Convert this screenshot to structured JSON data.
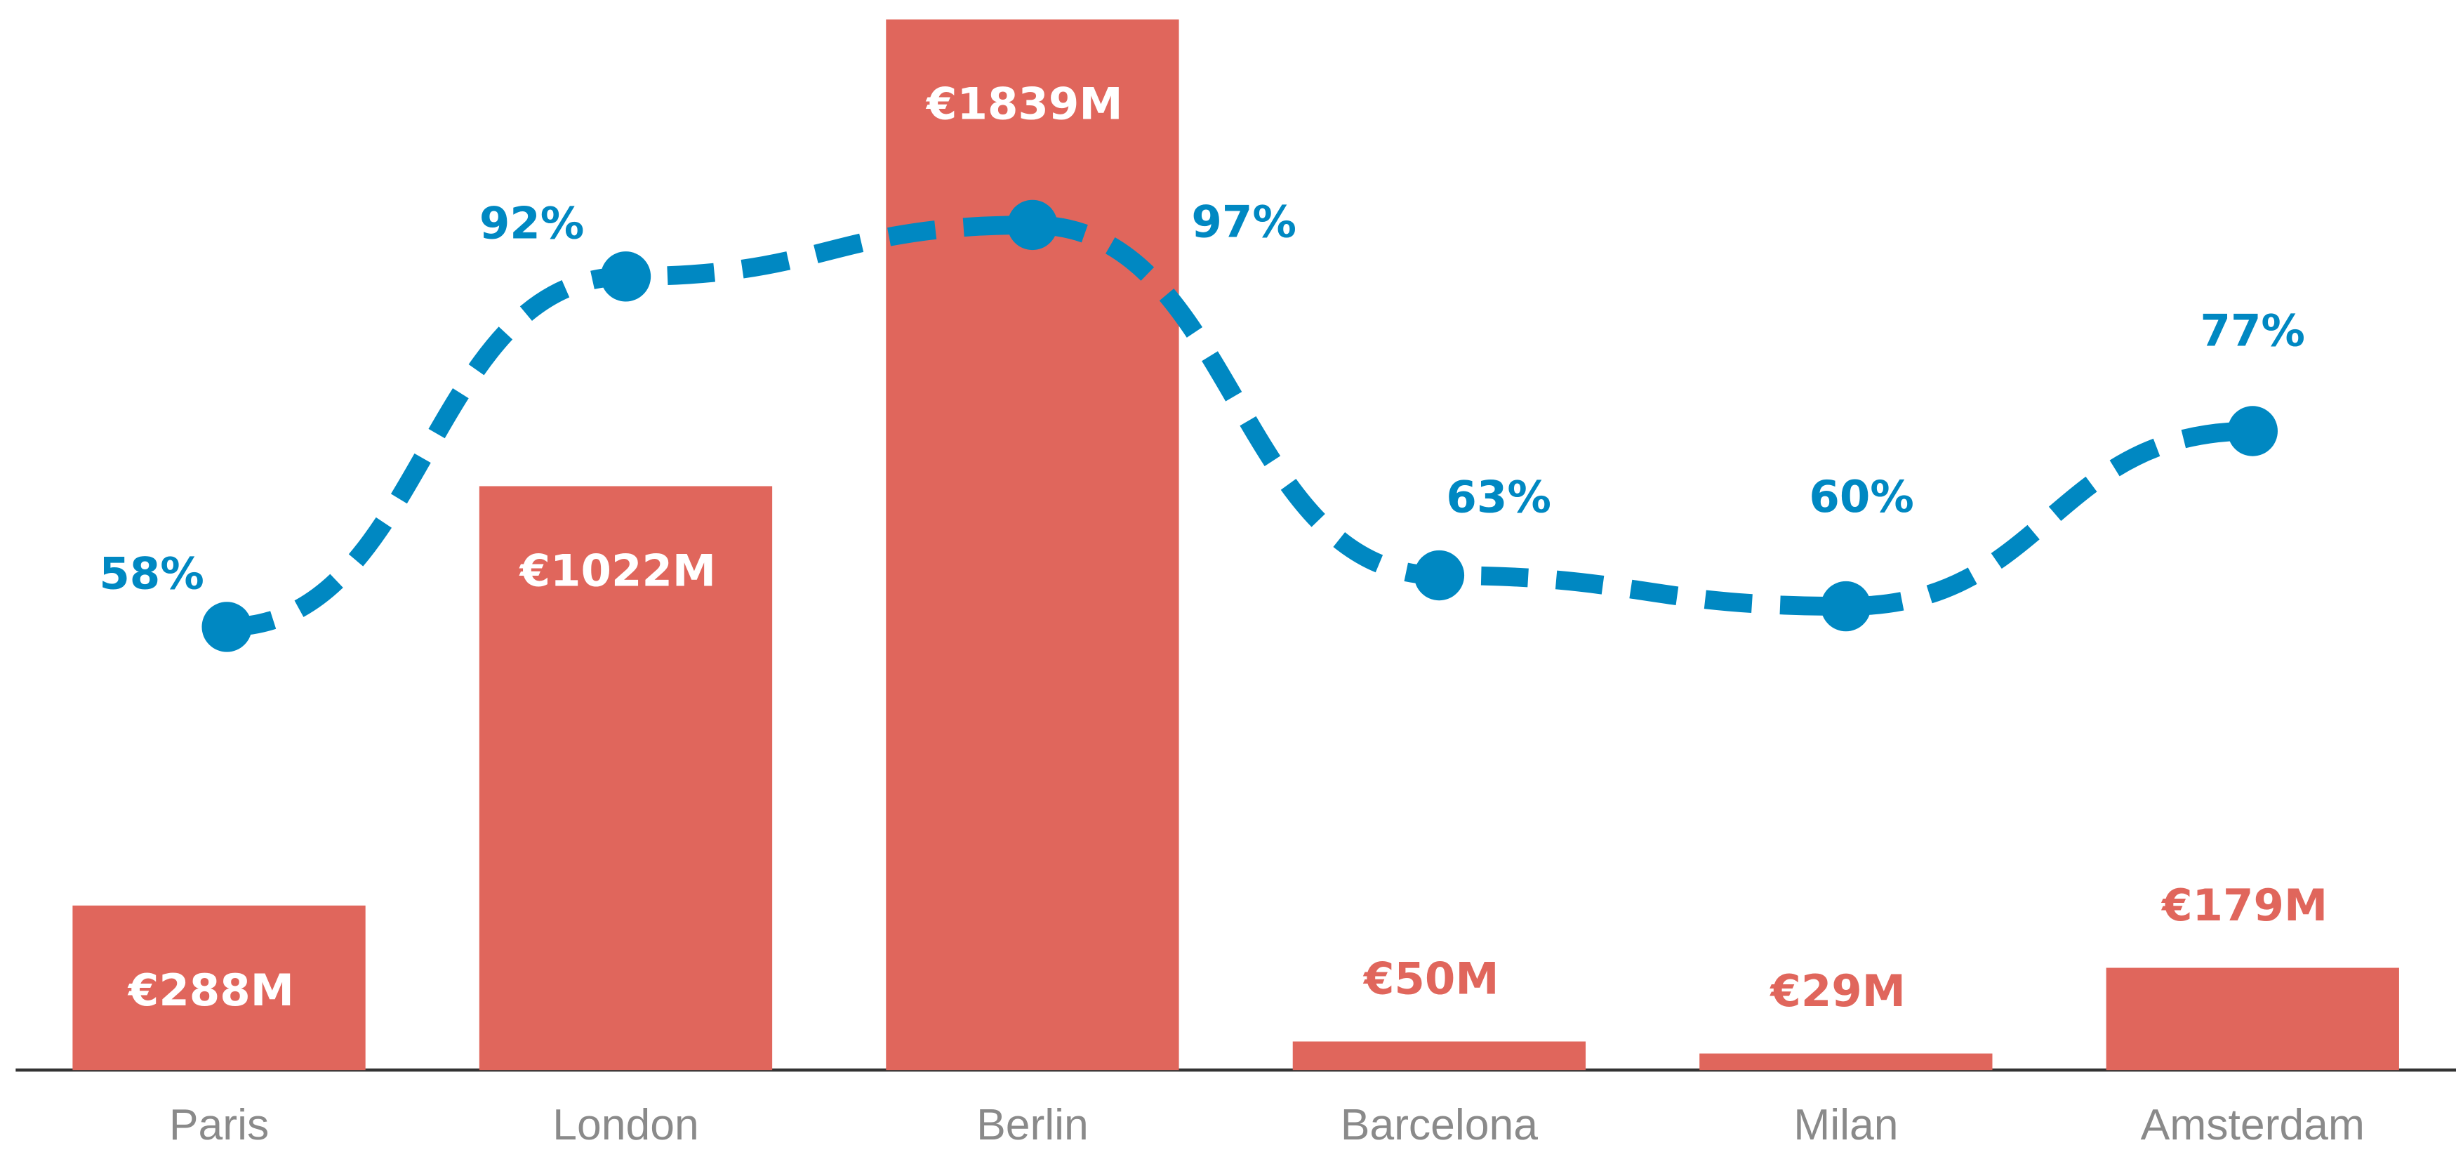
{
  "chart_data": {
    "type": "bar_line",
    "categories": [
      "Paris",
      "London",
      "Berlin",
      "Barcelona",
      "Milan",
      "Amsterdam"
    ],
    "series": [
      {
        "type": "bar",
        "color": "#e0665c",
        "values": [
          288,
          1022,
          1839,
          50,
          29,
          179
        ],
        "value_labels": [
          "€288M",
          "€1022M",
          "€1839M",
          "€50M",
          "€29M",
          "€179M"
        ]
      },
      {
        "type": "line",
        "axis": "y2",
        "color": "#0088c2",
        "dashed": true,
        "values": [
          58,
          92,
          97,
          63,
          60,
          77
        ],
        "value_labels": [
          "58%",
          "92%",
          "97%",
          "63%",
          "60%",
          "77%"
        ]
      }
    ],
    "ylim": [
      0,
      1840
    ],
    "y2lim": [
      15,
      117
    ],
    "grid": false
  }
}
